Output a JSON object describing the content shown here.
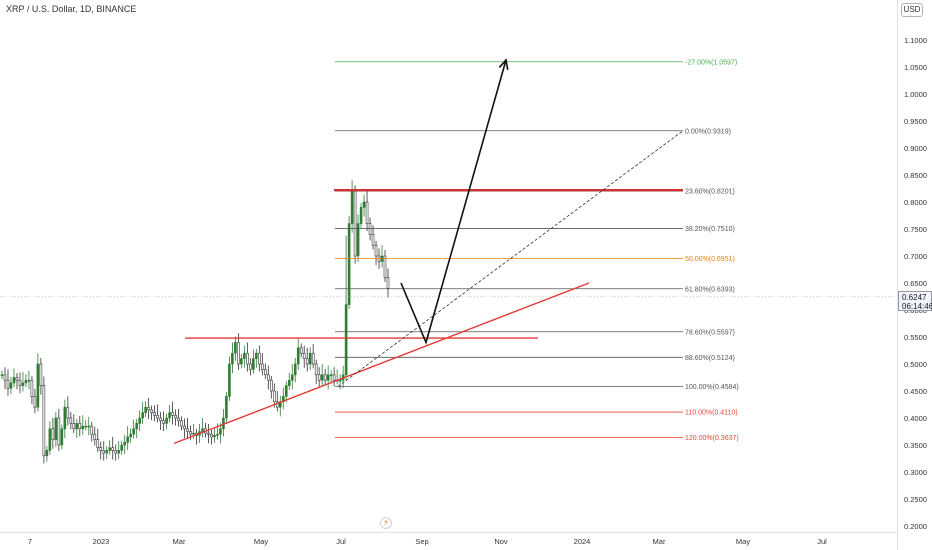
{
  "header": {
    "title": "XRP / U.S. Dollar, 1D, BINANCE",
    "currency_label": "USD"
  },
  "price_tag": {
    "price": "0.6247",
    "countdown": "06:14:46"
  },
  "event_icon": "lightning-icon",
  "chart_data": {
    "type": "candlestick",
    "x_ticks": [
      "7",
      "2023",
      "Mar",
      "May",
      "Jul",
      "Sep",
      "Nov",
      "2024",
      "Mar",
      "May",
      "Jul"
    ],
    "y_ticks": [
      "1.1000",
      "1.0500",
      "1.0000",
      "0.9500",
      "0.9000",
      "0.8500",
      "0.8000",
      "0.7500",
      "0.7000",
      "0.6500",
      "0.6000",
      "0.5500",
      "0.5000",
      "0.4500",
      "0.4000",
      "0.3500",
      "0.3000",
      "0.2500",
      "0.2000"
    ],
    "y_values": [
      1.1,
      1.05,
      1.0,
      0.95,
      0.9,
      0.85,
      0.8,
      0.75,
      0.7,
      0.65,
      0.6,
      0.55,
      0.5,
      0.45,
      0.4,
      0.35,
      0.3,
      0.25,
      0.2
    ],
    "ylim": [
      0.19,
      1.13
    ],
    "current_price": 0.6247,
    "fib_levels": [
      {
        "label": "-27.00%(1.0597)",
        "value": 1.0597,
        "color": "#4caf50"
      },
      {
        "label": "0.00%(0.9319)",
        "value": 0.9319,
        "color": "#555555"
      },
      {
        "label": "23.60%(0.8201)",
        "value": 0.8201,
        "color": "#555555"
      },
      {
        "label": "38.20%(0.7510)",
        "value": 0.751,
        "color": "#555555"
      },
      {
        "label": "50.00%(0.6951)",
        "value": 0.6951,
        "color": "#f57c00"
      },
      {
        "label": "61.80%(0.6393)",
        "value": 0.6393,
        "color": "#555555"
      },
      {
        "label": "78.60%(0.5597)",
        "value": 0.5597,
        "color": "#555555"
      },
      {
        "label": "88.60%(0.5124)",
        "value": 0.5124,
        "color": "#555555"
      },
      {
        "label": "100.00%(0.4584)",
        "value": 0.4584,
        "color": "#555555"
      },
      {
        "label": "110.00%(0.4110)",
        "value": 0.411,
        "color": "#f44336"
      },
      {
        "label": "120.00%(0.3637)",
        "value": 0.3637,
        "color": "#f44336"
      }
    ],
    "resistance_price": 0.822,
    "support_price": 0.548,
    "trendline_prices": [
      0.353,
      0.65
    ],
    "projection_prices": [
      0.65,
      0.54,
      1.063
    ],
    "ohlc_closes": [
      0.48,
      0.47,
      0.455,
      0.465,
      0.475,
      0.47,
      0.46,
      0.465,
      0.47,
      0.47,
      0.44,
      0.42,
      0.5,
      0.46,
      0.33,
      0.34,
      0.38,
      0.36,
      0.4,
      0.35,
      0.38,
      0.42,
      0.4,
      0.39,
      0.38,
      0.39,
      0.38,
      0.385,
      0.385,
      0.385,
      0.37,
      0.36,
      0.345,
      0.34,
      0.335,
      0.34,
      0.345,
      0.34,
      0.335,
      0.34,
      0.35,
      0.355,
      0.365,
      0.37,
      0.38,
      0.39,
      0.4,
      0.41,
      0.42,
      0.415,
      0.41,
      0.405,
      0.4,
      0.395,
      0.39,
      0.4,
      0.41,
      0.405,
      0.4,
      0.395,
      0.385,
      0.38,
      0.375,
      0.37,
      0.372,
      0.368,
      0.375,
      0.38,
      0.372,
      0.37,
      0.365,
      0.368,
      0.37,
      0.38,
      0.4,
      0.44,
      0.5,
      0.52,
      0.54,
      0.5,
      0.51,
      0.52,
      0.5,
      0.49,
      0.51,
      0.52,
      0.5,
      0.49,
      0.48,
      0.47,
      0.45,
      0.43,
      0.42,
      0.43,
      0.44,
      0.46,
      0.47,
      0.48,
      0.5,
      0.53,
      0.52,
      0.51,
      0.5,
      0.52,
      0.5,
      0.48,
      0.47,
      0.48,
      0.47,
      0.48,
      0.48,
      0.47,
      0.47,
      0.47,
      0.48,
      0.61,
      0.76,
      0.82,
      0.7,
      0.76,
      0.79,
      0.8,
      0.76,
      0.74,
      0.72,
      0.7,
      0.69,
      0.7,
      0.66,
      0.64
    ]
  }
}
